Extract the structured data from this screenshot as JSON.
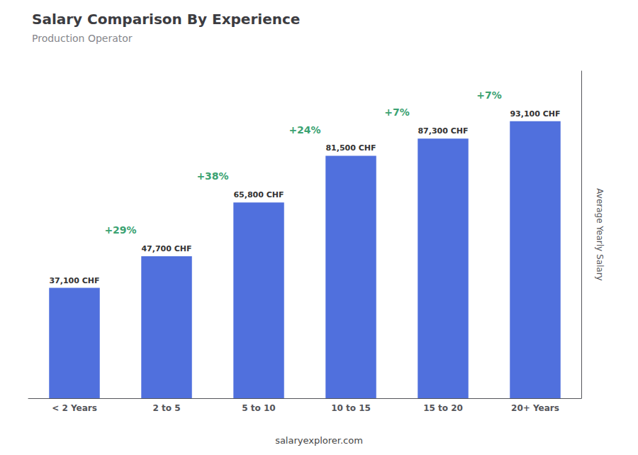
{
  "chart_data": {
    "type": "bar",
    "title": "Salary Comparison By Experience",
    "subtitle": "Production Operator",
    "categories": [
      "< 2 Years",
      "2 to 5",
      "5 to 10",
      "10 to 15",
      "15 to 20",
      "20+ Years"
    ],
    "values": [
      37100,
      47700,
      65800,
      81500,
      87300,
      93100
    ],
    "value_labels": [
      "37,100 CHF",
      "47,700 CHF",
      "65,800 CHF",
      "81,500 CHF",
      "87,300 CHF",
      "93,100 CHF"
    ],
    "data_labels": true,
    "annotations": [
      "+29%",
      "+38%",
      "+24%",
      "+7%",
      "+7%"
    ],
    "ylabel": "Average Yearly Salary",
    "footer": "salaryexplorer.com",
    "ylim": [
      0,
      110000
    ],
    "tick_labels": "x",
    "grid": false
  }
}
